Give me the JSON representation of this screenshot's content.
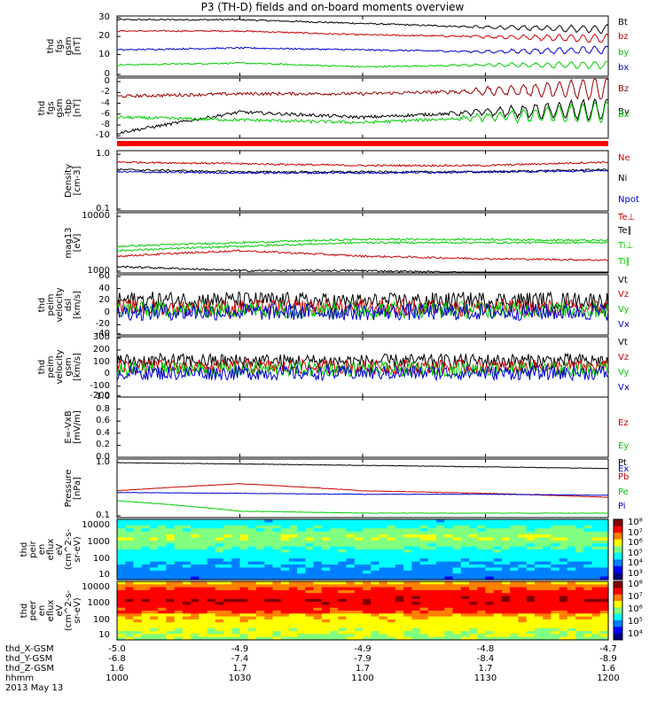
{
  "title": "P3 (TH-D) fields and on-board moments overview",
  "panels": [
    {
      "id": "fgs_gsm",
      "ylabel": [
        "thd",
        "fgs",
        "gsm",
        "[nT]"
      ],
      "yticks": [
        "30",
        "20",
        "10",
        "0"
      ],
      "ylim": [
        0,
        32
      ],
      "legend": [
        {
          "label": "Bt",
          "color": "#000000"
        },
        {
          "label": "bz",
          "color": "#cc0000"
        },
        {
          "label": "by",
          "color": "#00cc00"
        },
        {
          "label": "bx",
          "color": "#0000cc"
        }
      ]
    },
    {
      "id": "fgs_gsm_tbp",
      "ylabel": [
        "thd",
        "fgs",
        "gsm",
        "-tbp",
        "[nT]"
      ],
      "yticks": [
        "0",
        "-2",
        "-4",
        "-6",
        "-8",
        "-10"
      ],
      "ylim": [
        -11,
        0.5
      ],
      "legend": [
        {
          "label": "Bz",
          "color": "#990000"
        },
        {
          "label": "By",
          "color": "#000000"
        },
        {
          "label": "Bx",
          "color": "#00cc00"
        }
      ]
    },
    {
      "id": "density",
      "ylabel": [
        "Density",
        "[cm-3]"
      ],
      "yticks": [
        "1.0",
        "0.1"
      ],
      "scale": "log",
      "legend": [
        {
          "label": "Ne",
          "color": "#cc0000"
        },
        {
          "label": "Ni",
          "color": "#000000"
        },
        {
          "label": "Npot",
          "color": "#0000cc"
        }
      ]
    },
    {
      "id": "temperature",
      "ylabel": [
        "mag13",
        "[eV]"
      ],
      "yticks": [
        "10000",
        "1000"
      ],
      "scale": "log",
      "legend": [
        {
          "label": "Te⊥",
          "color": "#cc0000"
        },
        {
          "label": "Te∥",
          "color": "#000000"
        },
        {
          "label": "Ti⊥",
          "color": "#00cc00"
        },
        {
          "label": "Ti∥",
          "color": "#00cc00"
        }
      ]
    },
    {
      "id": "peim_velocity_dsl",
      "ylabel": [
        "thd",
        "peim",
        "velocity",
        "dsl",
        "[km/s]"
      ],
      "yticks": [
        "60",
        "40",
        "20",
        "0",
        "-20",
        "-40"
      ],
      "ylim": [
        -40,
        60
      ],
      "legend": [
        {
          "label": "Vt",
          "color": "#000000"
        },
        {
          "label": "Vz",
          "color": "#cc0000"
        },
        {
          "label": "Vy",
          "color": "#00cc00"
        },
        {
          "label": "Vx",
          "color": "#0000cc"
        }
      ]
    },
    {
      "id": "peim_velocity_gsm",
      "ylabel": [
        "thd",
        "peim",
        "velocity",
        "gsm",
        "[km/s]"
      ],
      "yticks": [
        "300",
        "200",
        "100",
        "0",
        "-100",
        "-200"
      ],
      "ylim": [
        -200,
        300
      ],
      "legend": [
        {
          "label": "Vt",
          "color": "#000000"
        },
        {
          "label": "Vz",
          "color": "#cc0000"
        },
        {
          "label": "Vy",
          "color": "#00cc00"
        },
        {
          "label": "Vx",
          "color": "#0000cc"
        }
      ]
    },
    {
      "id": "efield",
      "ylabel": [
        "E=-VxB",
        "[mV/m]"
      ],
      "yticks": [
        "1.0",
        "0.8",
        "0.6",
        "0.4",
        "0.2",
        "0.0"
      ],
      "ylim": [
        0,
        1
      ],
      "legend": [
        {
          "label": "Ez",
          "color": "#cc0000"
        },
        {
          "label": "Ey",
          "color": "#00cc00"
        },
        {
          "label": "Ex",
          "color": "#0000cc"
        }
      ]
    },
    {
      "id": "pressure",
      "ylabel": [
        "Pressure",
        "[nPa]"
      ],
      "yticks": [
        "1.0",
        "0.1"
      ],
      "scale": "log",
      "legend": [
        {
          "label": "Pt",
          "color": "#000000"
        },
        {
          "label": "Pb",
          "color": "#cc0000"
        },
        {
          "label": "Pe",
          "color": "#00cc00"
        },
        {
          "label": "Pi",
          "color": "#0000cc"
        }
      ]
    },
    {
      "id": "peir_en_eflux",
      "ylabel": [
        "thd",
        "peir",
        "en",
        "eflux",
        "eV",
        "(cm^2-s-",
        "sr-eV)"
      ],
      "yticks": [
        "10000",
        "1000",
        "100",
        "10"
      ],
      "colorbar": [
        "10⁸",
        "10⁷",
        "10⁶",
        "10⁵",
        "10⁴",
        "10³"
      ]
    },
    {
      "id": "peer_en_eflux",
      "ylabel": [
        "thd",
        "peer",
        "en",
        "eflux",
        "eV",
        "(cm^2-s-",
        "sr-eV)"
      ],
      "yticks": [
        "10000",
        "1000",
        "100",
        "10"
      ],
      "colorbar": [
        "10⁸",
        "10⁷",
        "10⁶",
        "10⁵",
        "10⁴"
      ]
    }
  ],
  "x_axis": {
    "rows": [
      {
        "label": "thd_X-GSM",
        "values": [
          "-5.0",
          "-4.9",
          "-4.9",
          "-4.8",
          "-4.7"
        ]
      },
      {
        "label": "thd_Y-GSM",
        "values": [
          "-6.8",
          "-7.4",
          "-7.9",
          "-8.4",
          "-8.9"
        ]
      },
      {
        "label": "thd_Z-GSM",
        "values": [
          "1.6",
          "1.7",
          "1.7",
          "1.7",
          "1.6"
        ]
      },
      {
        "label": "hhmm",
        "values": [
          "1000",
          "1030",
          "1100",
          "1130",
          "1200"
        ]
      }
    ],
    "date": "2013 May 13"
  },
  "chart_data": [
    {
      "type": "line",
      "panel": "fgs_gsm",
      "x": [
        "1000",
        "1030",
        "1100",
        "1130",
        "1200"
      ],
      "xlabel": "hhmm",
      "ylabel": "thd fgs gsm [nT]",
      "ylim": [
        0,
        32
      ],
      "series": [
        {
          "name": "Bt",
          "color": "#000000",
          "values": [
            30,
            30,
            28,
            26,
            25
          ]
        },
        {
          "name": "bz",
          "color": "#cc0000",
          "values": [
            24,
            24,
            22,
            21,
            20
          ]
        },
        {
          "name": "by",
          "color": "#00cc00",
          "values": [
            6,
            7,
            5,
            6,
            6
          ]
        },
        {
          "name": "bx",
          "color": "#0000cc",
          "values": [
            14,
            15,
            14,
            13,
            14
          ]
        }
      ]
    },
    {
      "type": "line",
      "panel": "fgs_gsm_tbp",
      "x": [
        "1000",
        "1030",
        "1100",
        "1130",
        "1200"
      ],
      "xlabel": "hhmm",
      "ylabel": "thd fgs gsm-tbp [nT]",
      "ylim": [
        -11,
        0.5
      ],
      "series": [
        {
          "name": "Bz",
          "color": "#990000",
          "values": [
            -3,
            -2.5,
            -2.5,
            -2,
            -1.5
          ]
        },
        {
          "name": "By",
          "color": "#000000",
          "values": [
            -10,
            -6,
            -7,
            -6,
            -5.5
          ]
        },
        {
          "name": "Bx",
          "color": "#00cc00",
          "values": [
            -7,
            -7.5,
            -8,
            -7,
            -6
          ]
        }
      ]
    },
    {
      "type": "line",
      "panel": "density",
      "scale": "log",
      "x": [
        "1000",
        "1030",
        "1100",
        "1130",
        "1200"
      ],
      "xlabel": "hhmm",
      "ylabel": "Density [cm-3]",
      "ylim": [
        0.1,
        1.2
      ],
      "series": [
        {
          "name": "Ne",
          "color": "#cc0000",
          "values": [
            0.75,
            0.7,
            0.65,
            0.65,
            0.75
          ]
        },
        {
          "name": "Ni",
          "color": "#000000",
          "values": [
            0.55,
            0.5,
            0.5,
            0.5,
            0.55
          ]
        },
        {
          "name": "Npot",
          "color": "#0000cc",
          "values": [
            0.5,
            0.48,
            0.48,
            0.5,
            0.52
          ]
        }
      ]
    },
    {
      "type": "line",
      "panel": "temperature",
      "scale": "log",
      "x": [
        "1000",
        "1030",
        "1100",
        "1130",
        "1200"
      ],
      "xlabel": "hhmm",
      "ylabel": "mag13 [eV]",
      "ylim": [
        1000,
        12000
      ],
      "series": [
        {
          "name": "Te⊥",
          "color": "#cc0000",
          "values": [
            2000,
            2500,
            2000,
            1800,
            1700
          ]
        },
        {
          "name": "Te∥",
          "color": "#000000",
          "values": [
            1300,
            1100,
            1100,
            1000,
            950
          ]
        },
        {
          "name": "Ti⊥",
          "color": "#00cc00",
          "values": [
            2500,
            3000,
            3500,
            3500,
            3500
          ]
        },
        {
          "name": "Ti∥",
          "color": "#00cc00",
          "values": [
            3000,
            3500,
            4000,
            4000,
            3800
          ]
        }
      ]
    },
    {
      "type": "line",
      "panel": "peim_velocity_dsl",
      "x": [
        "1000",
        "1030",
        "1100",
        "1130",
        "1200"
      ],
      "xlabel": "hhmm",
      "ylabel": "thd peim velocity dsl [km/s]",
      "ylim": [
        -40,
        60
      ],
      "series": [
        {
          "name": "Vt",
          "color": "#000000",
          "values": [
            18,
            18,
            15,
            18,
            17
          ]
        },
        {
          "name": "Vz",
          "color": "#cc0000",
          "values": [
            5,
            5,
            5,
            5,
            5
          ]
        },
        {
          "name": "Vy",
          "color": "#00cc00",
          "values": [
            2,
            2,
            2,
            2,
            2
          ]
        },
        {
          "name": "Vx",
          "color": "#0000cc",
          "values": [
            -2,
            -2,
            -2,
            -2,
            -2
          ]
        }
      ]
    },
    {
      "type": "line",
      "panel": "peim_velocity_gsm",
      "x": [
        "1000",
        "1030",
        "1100",
        "1130",
        "1200"
      ],
      "xlabel": "hhmm",
      "ylabel": "thd peim velocity gsm [km/s]",
      "ylim": [
        -200,
        300
      ],
      "series": [
        {
          "name": "Vt",
          "color": "#000000",
          "values": [
            100,
            100,
            95,
            100,
            100
          ]
        },
        {
          "name": "Vz",
          "color": "#cc0000",
          "values": [
            50,
            50,
            50,
            50,
            50
          ]
        },
        {
          "name": "Vy",
          "color": "#00cc00",
          "values": [
            30,
            30,
            30,
            30,
            30
          ]
        },
        {
          "name": "Vx",
          "color": "#0000cc",
          "values": [
            0,
            0,
            0,
            0,
            0
          ]
        }
      ]
    },
    {
      "type": "line",
      "panel": "efield",
      "x": [
        "1000",
        "1030",
        "1100",
        "1130",
        "1200"
      ],
      "xlabel": "hhmm",
      "ylabel": "E=-VxB [mV/m]",
      "ylim": [
        0,
        1
      ],
      "series": []
    },
    {
      "type": "line",
      "panel": "pressure",
      "scale": "log",
      "x": [
        "1000",
        "1030",
        "1100",
        "1130",
        "1200"
      ],
      "xlabel": "hhmm",
      "ylabel": "Pressure [nPa]",
      "ylim": [
        0.1,
        1.1
      ],
      "series": [
        {
          "name": "Pt",
          "color": "#000000",
          "values": [
            0.95,
            0.9,
            0.85,
            0.8,
            0.75
          ]
        },
        {
          "name": "Pb",
          "color": "#cc0000",
          "values": [
            0.3,
            0.4,
            0.3,
            0.27,
            0.23
          ]
        },
        {
          "name": "Pe",
          "color": "#00cc00",
          "values": [
            0.2,
            0.13,
            0.12,
            0.12,
            0.12
          ]
        },
        {
          "name": "Pi",
          "color": "#0000cc",
          "values": [
            0.28,
            0.27,
            0.26,
            0.26,
            0.25
          ]
        }
      ]
    },
    {
      "type": "heatmap",
      "panel": "peir_en_eflux",
      "x": [
        "1000",
        "1030",
        "1100",
        "1130",
        "1200"
      ],
      "xlabel": "hhmm",
      "ylabel": "thd peir en eflux eV (cm^2-s-sr-eV)",
      "yticks": [
        10000,
        1000,
        100,
        10
      ],
      "colorbar": [
        "10⁸",
        "10⁷",
        "10⁶",
        "10⁵",
        "10⁴",
        "10³"
      ]
    },
    {
      "type": "heatmap",
      "panel": "peer_en_eflux",
      "x": [
        "1000",
        "1030",
        "1100",
        "1130",
        "1200"
      ],
      "xlabel": "hhmm",
      "ylabel": "thd peer en eflux eV (cm^2-s-sr-eV)",
      "yticks": [
        10000,
        1000,
        100,
        10
      ],
      "colorbar": [
        "10⁸",
        "10⁷",
        "10⁶",
        "10⁵",
        "10⁴"
      ]
    }
  ]
}
